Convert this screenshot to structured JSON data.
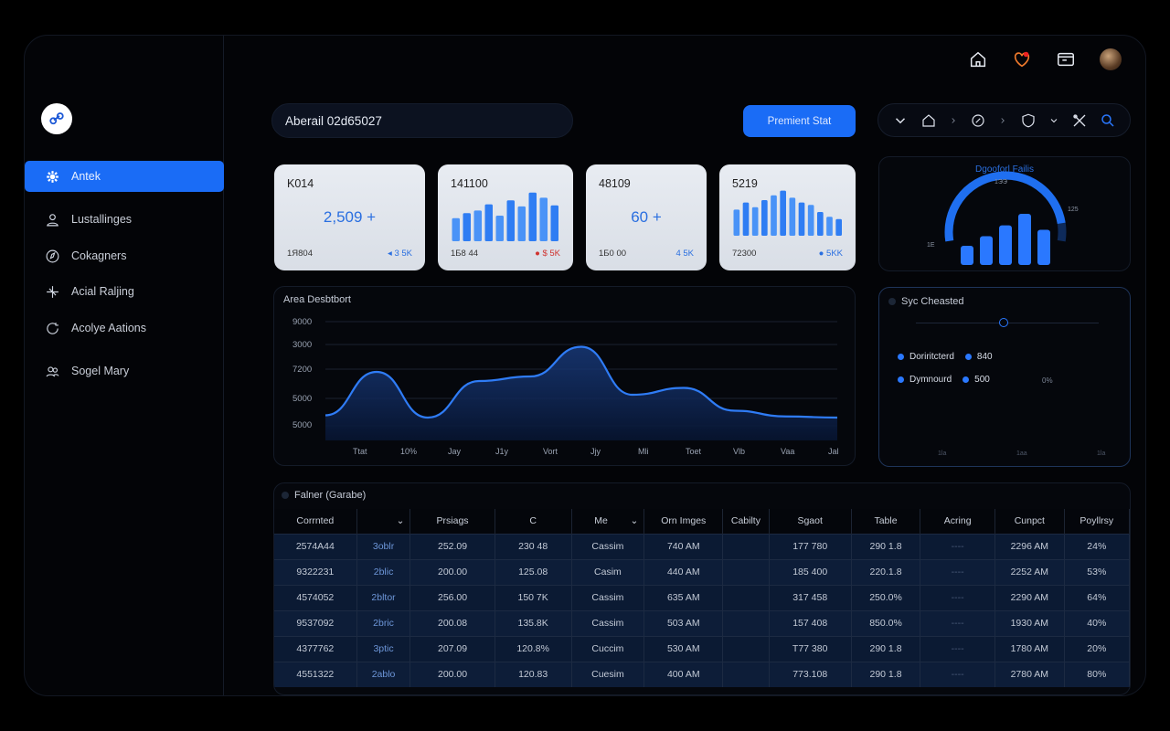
{
  "header_icons": [
    "home-icon",
    "heart-alert-icon",
    "window-icon",
    "avatar"
  ],
  "sidebar": {
    "items": [
      {
        "label": "Antek",
        "icon": "gear-icon",
        "active": true
      },
      {
        "label": "Lustallinges",
        "icon": "user-icon"
      },
      {
        "label": "Cokagners",
        "icon": "compass-icon"
      },
      {
        "label": "Acial Raljing",
        "icon": "sparkle-icon"
      },
      {
        "label": "Acolye Aations",
        "icon": "refresh-icon"
      },
      {
        "label": "Sogel Mary",
        "icon": "group-icon"
      }
    ]
  },
  "search": {
    "value": "Aberail 02d65027"
  },
  "primary_button": {
    "label": "Premient Stat"
  },
  "stats": [
    {
      "title": "K014",
      "value": "2,509 +",
      "bottom": "1Я804",
      "delta": "◂ 3 5K",
      "delta_color": "#2a6fe0"
    },
    {
      "title": "141100",
      "value": "",
      "bottom": "1Б8 44",
      "delta": "● $ 5K",
      "delta_color": "#d0332f",
      "bars": [
        0.45,
        0.55,
        0.6,
        0.72,
        0.5,
        0.8,
        0.68,
        0.95,
        0.85,
        0.7
      ]
    },
    {
      "title": "48109",
      "value": "60 +",
      "bottom": "1Б0 00",
      "delta": "4 5K",
      "delta_color": "#2a6fe0"
    },
    {
      "title": "5219",
      "value": "",
      "bottom": "72300",
      "delta": "● 5KK",
      "delta_color": "#2a6fe0",
      "bars": [
        0.55,
        0.7,
        0.6,
        0.75,
        0.85,
        0.95,
        0.8,
        0.7,
        0.65,
        0.5,
        0.4,
        0.35
      ]
    }
  ],
  "gauge": {
    "title": "Dgooforl Failis",
    "labels": [
      "1ЭЭ",
      "125",
      "1Е"
    ],
    "bars": [
      0.3,
      0.45,
      0.62,
      0.8,
      0.55
    ]
  },
  "area_chart": {
    "title": "Area Desbtbort",
    "y_labels": [
      "9000",
      "3000",
      "7200",
      "5000",
      "5000"
    ],
    "x_labels": [
      "Ttat",
      "10%",
      "Jay",
      "J1y",
      "Vort",
      "Jjy",
      "Mli",
      "Toet",
      "Vlb",
      "Vaa",
      "Jal"
    ],
    "chart_data": {
      "type": "area",
      "x": [
        "Ttat",
        "10%",
        "Jay",
        "J1y",
        "Vort",
        "Jjy",
        "Mli",
        "Toet",
        "Vlb",
        "Vaa",
        "Jal"
      ],
      "values": [
        5100,
        7000,
        5000,
        6600,
        6800,
        8100,
        6000,
        6300,
        5300,
        5050,
        5000
      ]
    }
  },
  "side_panel": {
    "title": "Syc Cheasted",
    "legend": [
      {
        "label": "Doriritcterd",
        "value": "840",
        "color": "#2a78ff"
      },
      {
        "label": "Dymnourd",
        "value": "500",
        "color": "#2a78ff"
      }
    ],
    "pct": "0%",
    "x_labels": [
      "1la",
      "1aa",
      "1la"
    ]
  },
  "table": {
    "title": "Falner (Garabe)",
    "headers": [
      "Corrnted",
      "",
      "Prsiags",
      "C",
      "Me",
      "Orn Imges",
      "Cabilty",
      "Sgaot",
      "Table",
      "Acring",
      "Cunpct",
      "Poyllrsy"
    ],
    "rows": [
      [
        "2574A44",
        "3oblr",
        "252.09",
        "230 48",
        "Cassim",
        "740 AM",
        "",
        "177 780",
        "290 1.8",
        "----",
        "2296 AM",
        "24%"
      ],
      [
        "9322231",
        "2blic",
        "200.00",
        "125.08",
        "Casim",
        "440 AM",
        "",
        "185 400",
        "220.1.8",
        "----",
        "2252 AM",
        "53%"
      ],
      [
        "4574052",
        "2bltor",
        "256.00",
        "150 7K",
        "Cassim",
        "635 AM",
        "",
        "317 458",
        "250.0%",
        "----",
        "2290 AM",
        "64%"
      ],
      [
        "9537092",
        "2bric",
        "200.08",
        "135.8K",
        "Cassim",
        "503 AM",
        "",
        "157 408",
        "850.0%",
        "----",
        "1930 AM",
        "40%"
      ],
      [
        "4377762",
        "3ptic",
        "207.09",
        "120.8%",
        "Cuccim",
        "530 AM",
        "",
        "T77 380",
        "290 1.8",
        "----",
        "1780 AM",
        "20%"
      ],
      [
        "4551322",
        "2ablo",
        "200.00",
        "120.83",
        "Cuesim",
        "400 AM",
        "",
        "773.108",
        "290 1.8",
        "----",
        "2780 AM",
        "80%"
      ]
    ]
  }
}
